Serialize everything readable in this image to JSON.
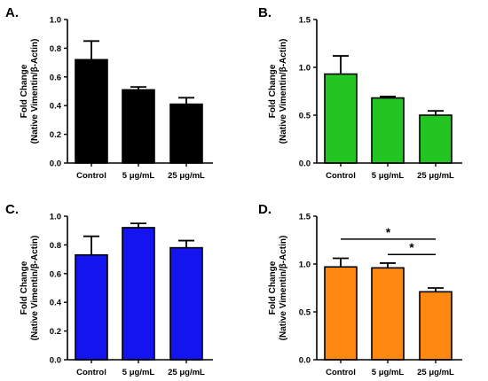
{
  "chart_data": [
    {
      "type": "bar",
      "panel_label": "A.",
      "categories": [
        "Control",
        "5 μg/mL",
        "25 μg/mL"
      ],
      "values": [
        0.72,
        0.51,
        0.41
      ],
      "errors": [
        0.13,
        0.02,
        0.045
      ],
      "color": "#000000",
      "ylabel_lines": [
        "Fold Change",
        "(Native Vimentin/β-Actin)"
      ],
      "ylim": [
        0,
        1.0
      ],
      "yticks": [
        0.0,
        0.2,
        0.4,
        0.6,
        0.8,
        1.0
      ],
      "ytick_labels": [
        "0.0",
        "0.2",
        "0.4",
        "0.6",
        "0.8",
        "1.0"
      ],
      "significance": []
    },
    {
      "type": "bar",
      "panel_label": "B.",
      "categories": [
        "Control",
        "5 μg/mL",
        "25 μg/mL"
      ],
      "values": [
        0.93,
        0.68,
        0.5
      ],
      "errors": [
        0.19,
        0.015,
        0.045
      ],
      "color": "#22c522",
      "ylabel_lines": [
        "Fold Change",
        "(Native Vimentin/β-Actin)"
      ],
      "ylim": [
        0,
        1.5
      ],
      "yticks": [
        0.0,
        0.5,
        1.0,
        1.5
      ],
      "ytick_labels": [
        "0.0",
        "0.5",
        "1.0",
        "1.5"
      ],
      "significance": []
    },
    {
      "type": "bar",
      "panel_label": "C.",
      "categories": [
        "Control",
        "5 μg/mL",
        "25 μg/mL"
      ],
      "values": [
        0.73,
        0.92,
        0.78
      ],
      "errors": [
        0.13,
        0.03,
        0.05
      ],
      "color": "#1414ee",
      "ylabel_lines": [
        "Fold Change",
        "(Native Vimentin/β-Actin)"
      ],
      "ylim": [
        0,
        1.0
      ],
      "yticks": [
        0.0,
        0.2,
        0.4,
        0.6,
        0.8,
        1.0
      ],
      "ytick_labels": [
        "0.0",
        "0.2",
        "0.4",
        "0.6",
        "0.8",
        "1.0"
      ],
      "significance": []
    },
    {
      "type": "bar",
      "panel_label": "D.",
      "categories": [
        "Control",
        "5 μg/mL",
        "25 μg/mL"
      ],
      "values": [
        0.97,
        0.96,
        0.71
      ],
      "errors": [
        0.09,
        0.05,
        0.04
      ],
      "color": "#ff8811",
      "ylabel_lines": [
        "Fold Change",
        "(Native Vimentin/β-Actin)"
      ],
      "ylim": [
        0,
        1.5
      ],
      "yticks": [
        0.0,
        0.5,
        1.0,
        1.5
      ],
      "ytick_labels": [
        "0.0",
        "0.5",
        "1.0",
        "1.5"
      ],
      "significance": [
        {
          "from": 0,
          "to": 2,
          "label": "*",
          "y": 1.26
        },
        {
          "from": 1,
          "to": 2,
          "label": "*",
          "y": 1.1
        }
      ]
    }
  ]
}
